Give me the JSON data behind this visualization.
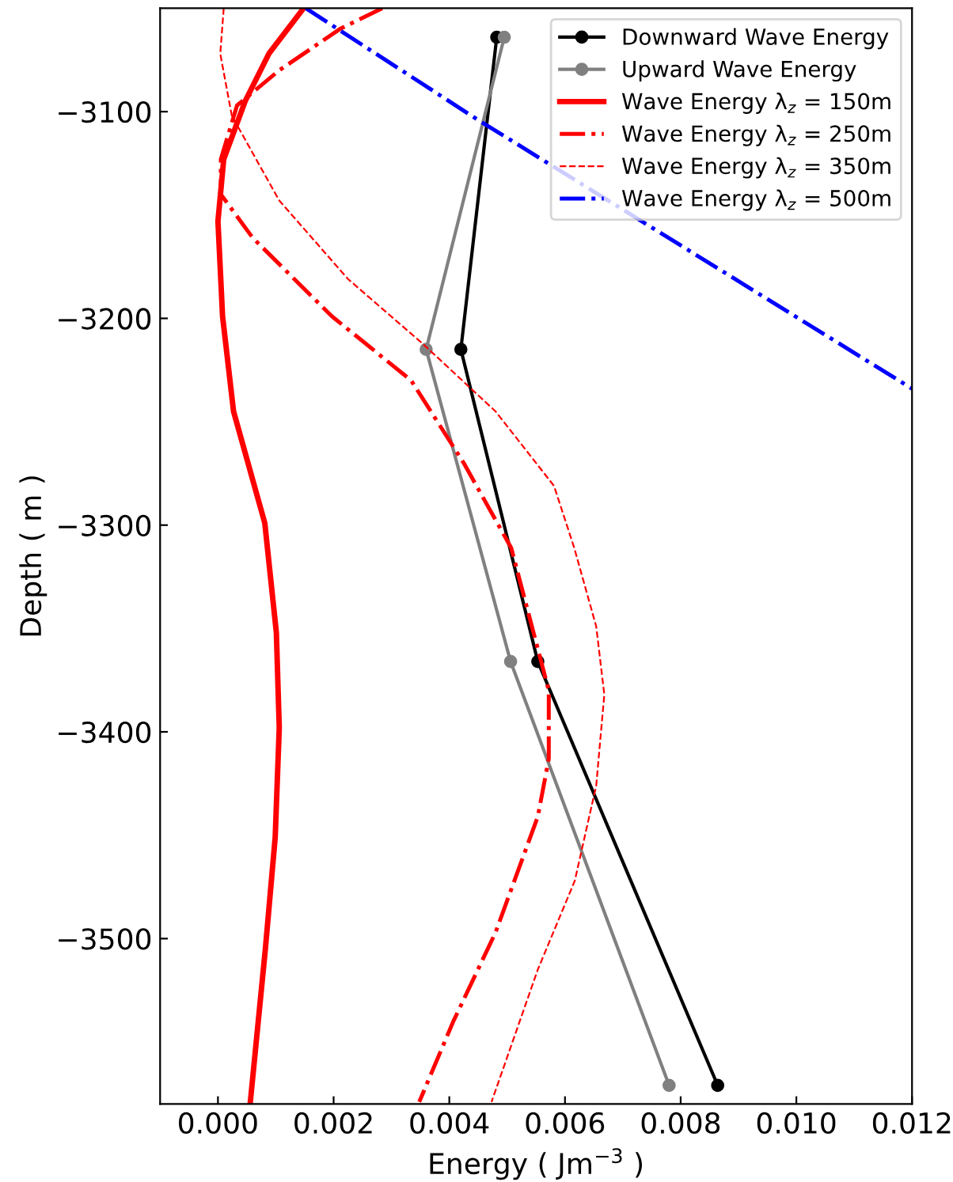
{
  "chart_data": {
    "type": "line",
    "xlabel": "Energy ( Jm$^{−3}$ )",
    "ylabel": "Depth ( m )",
    "xlim": [
      -0.001,
      0.012
    ],
    "ylim": [
      -3580,
      -3050
    ],
    "xticks": [
      {
        "value": 0,
        "label": "0.000"
      },
      {
        "value": 0.002,
        "label": "0.002"
      },
      {
        "value": 0.004,
        "label": "0.004"
      },
      {
        "value": 0.006,
        "label": "0.006"
      },
      {
        "value": 0.008,
        "label": "0.008"
      },
      {
        "value": 0.01,
        "label": "0.010"
      },
      {
        "value": 0.012,
        "label": "0.012"
      }
    ],
    "yticks": [
      {
        "value": -3100,
        "label": "−3100"
      },
      {
        "value": -3200,
        "label": "−3200"
      },
      {
        "value": -3300,
        "label": "−3300"
      },
      {
        "value": -3400,
        "label": "−3400"
      },
      {
        "value": -3500,
        "label": "−3500"
      }
    ],
    "legend": "top right",
    "grid": false,
    "series": [
      {
        "name": "Downward Wave Energy",
        "color": "#000000",
        "marker": "circle",
        "line_style": "solid",
        "x": [
          0.00482,
          0.0042,
          0.00553,
          0.00864
        ],
        "values": [
          -3064,
          -3215,
          -3366,
          -3571
        ]
      },
      {
        "name": "Upward Wave Energy",
        "color": "#808080",
        "marker": "circle",
        "line_style": "solid",
        "x": [
          0.00495,
          0.0036,
          0.00506,
          0.0078
        ],
        "values": [
          -3064,
          -3215,
          -3366,
          -3571
        ]
      },
      {
        "name": "Wave Energy λ$_{z}$ = 150m",
        "color": "#ff0000",
        "marker": "none",
        "line_style": "solid",
        "x": [
          0.00148,
          0.00088,
          0.00047,
          0.0001,
          0.0,
          8e-05,
          0.00027,
          0.00081,
          0.00101,
          0.00106,
          0.00099,
          0.00082,
          0.00056
        ],
        "values": [
          -3050,
          -3072,
          -3095,
          -3123,
          -3153,
          -3199,
          -3245,
          -3299,
          -3352,
          -3398,
          -3451,
          -3505,
          -3579
        ]
      },
      {
        "name": "Wave Energy λ$_{z}$ = 250m",
        "color": "#ff0000",
        "marker": "none",
        "line_style": "dashdot",
        "x": [
          0.00284,
          0.00211,
          0.00106,
          0.00033,
          5e-05,
          5e-05,
          0.0006,
          0.00197,
          0.00334,
          0.00425,
          0.00507,
          0.00572,
          0.00572,
          0.00553,
          0.0048,
          0.00407,
          0.00348
        ],
        "values": [
          -3050,
          -3060,
          -3080,
          -3097,
          -3123,
          -3140,
          -3161,
          -3199,
          -3230,
          -3270,
          -3311,
          -3380,
          -3413,
          -3441,
          -3497,
          -3540,
          -3579
        ]
      },
      {
        "name": "Wave Energy λ$_{z}$ = 350m",
        "color": "#ff0000",
        "marker": "none",
        "line_style": "dashed",
        "x": [
          0.0001,
          4e-05,
          0.00024,
          0.00106,
          0.00225,
          0.00353,
          0.0048,
          0.00581,
          0.00616,
          0.00654,
          0.00668,
          0.00654,
          0.00617,
          0.00553,
          0.00473
        ],
        "values": [
          -3050,
          -3072,
          -3102,
          -3143,
          -3181,
          -3212,
          -3245,
          -3281,
          -3311,
          -3349,
          -3382,
          -3426,
          -3472,
          -3515,
          -3579
        ]
      },
      {
        "name": "Wave Energy λ$_{z}$ = 500m",
        "color": "#0000ff",
        "marker": "none",
        "line_style": "dashdot",
        "x": [
          0.00152,
          0.00444,
          0.012
        ],
        "values": [
          -3050,
          -3103,
          -3234
        ]
      }
    ]
  }
}
